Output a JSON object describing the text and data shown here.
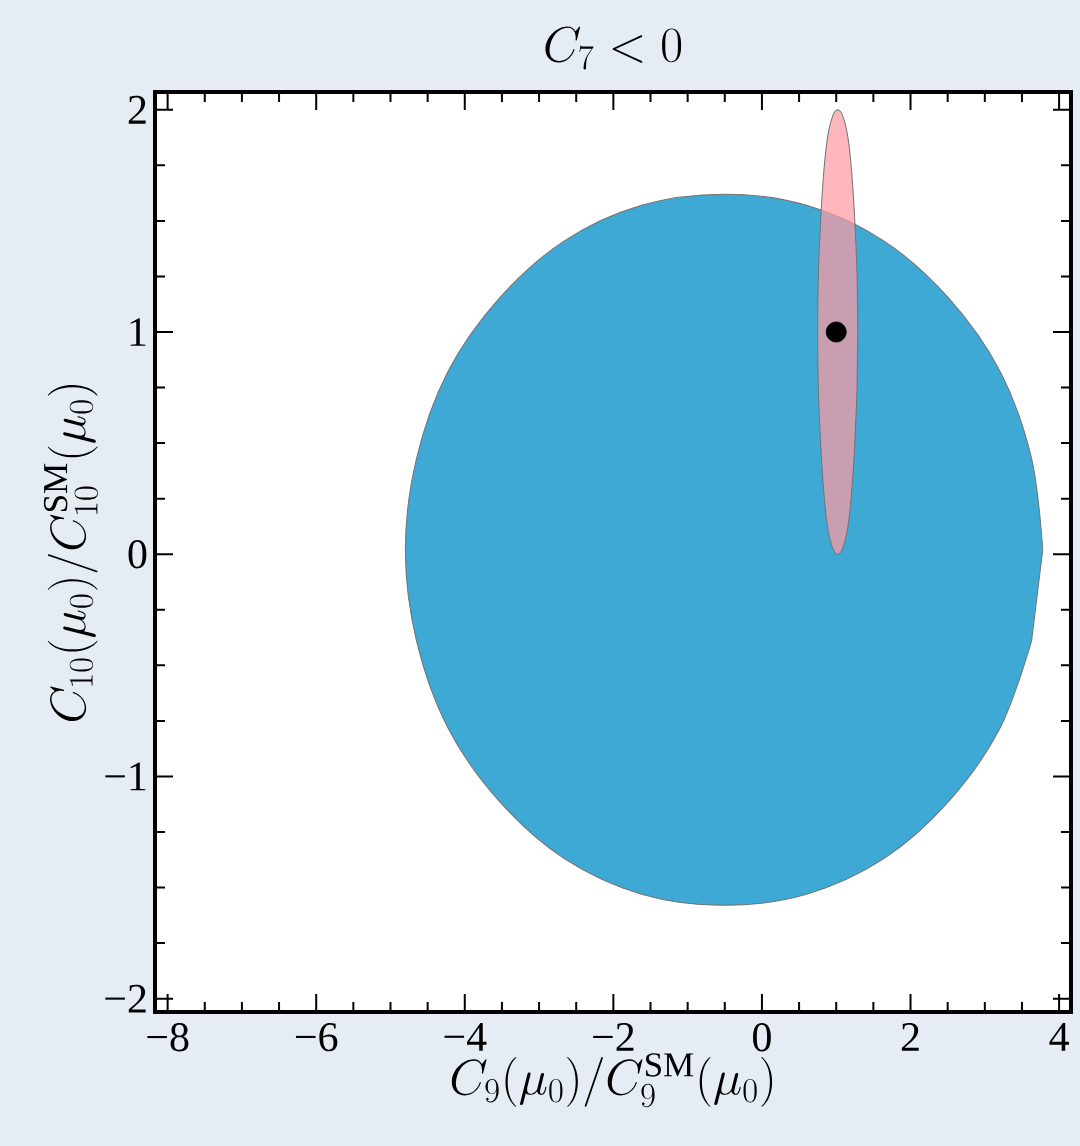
{
  "chart_data": {
    "type": "area",
    "title": "C_7 < 0",
    "xlabel": "C_9(\\mu_0)/C_9^{\\mathrm{SM}}(\\mu_0)",
    "ylabel": "C_{10}(\\mu_0)/C_{10}^{\\mathrm{SM}}(\\mu_0)",
    "xlim": [
      -8.17,
      4.16
    ],
    "ylim": [
      -2.06,
      2.08
    ],
    "xticks": [
      {
        "value": -8,
        "label": "−8"
      },
      {
        "value": -6,
        "label": "−6"
      },
      {
        "value": -4,
        "label": "−4"
      },
      {
        "value": -2,
        "label": "−2"
      },
      0,
      2,
      4
    ],
    "yticks": [
      {
        "value": -2,
        "label": "−2"
      },
      {
        "value": -1,
        "label": "−1"
      },
      0,
      1,
      2
    ],
    "grid": false,
    "series": [
      {
        "color": "#3fa9d5",
        "x": [
          3.78,
          3.63,
          3.21,
          2.52,
          1.64,
          0.6,
          -0.51,
          -1.62,
          -2.66,
          -3.54,
          -4.23,
          -4.65,
          -4.8,
          -4.65,
          -4.23,
          -3.54,
          -2.66,
          -1.62,
          -0.51,
          0.6,
          1.64,
          2.52,
          3.21,
          3.63
        ],
        "values": [
          0.02,
          0.43,
          0.82,
          1.15,
          1.41,
          1.57,
          1.62,
          1.57,
          1.41,
          1.15,
          0.82,
          0.43,
          0.02,
          -0.39,
          -0.78,
          -1.11,
          -1.37,
          -1.53,
          -1.58,
          -1.53,
          -1.37,
          -1.11,
          -0.78,
          -0.39
        ]
      },
      {
        "color": "#ff9aa2",
        "x": [
          1.29,
          1.28,
          1.25,
          1.21,
          1.16,
          1.09,
          1.02,
          0.95,
          0.88,
          0.83,
          0.79,
          0.76,
          0.75,
          0.76,
          0.79,
          0.83,
          0.88,
          0.95,
          1.02,
          1.09,
          1.16,
          1.21,
          1.25,
          1.28
        ],
        "values": [
          1.0,
          1.26,
          1.5,
          1.71,
          1.87,
          1.97,
          2.0,
          1.97,
          1.87,
          1.71,
          1.5,
          1.26,
          1.0,
          0.74,
          0.5,
          0.29,
          0.13,
          0.03,
          0.0,
          0.03,
          0.13,
          0.29,
          0.5,
          0.74
        ]
      },
      {
        "type": "scatter",
        "color": "#000000",
        "marker": "circle",
        "x": [
          1.0
        ],
        "values": [
          1.0
        ]
      }
    ]
  }
}
